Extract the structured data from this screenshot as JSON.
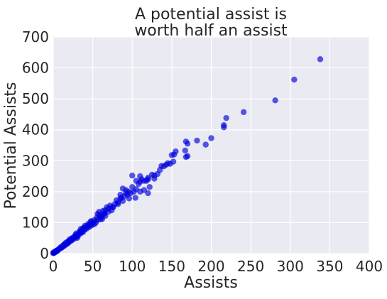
{
  "chart_data": {
    "type": "scatter",
    "title_lines": [
      "A potential assist is",
      "worth half an assist"
    ],
    "xlabel": "Assists",
    "ylabel": "Potential Assists",
    "xlim": [
      0,
      400
    ],
    "ylim": [
      0,
      700
    ],
    "xticks": [
      0,
      50,
      100,
      150,
      200,
      250,
      300,
      350,
      400
    ],
    "yticks": [
      0,
      100,
      200,
      300,
      400,
      500,
      600,
      700
    ],
    "grid": true,
    "background_color": "#eaeaf2",
    "grid_color": "#ffffff",
    "point_color": "#0000dd",
    "point_opacity": 0.65,
    "points": [
      [
        338,
        628
      ],
      [
        305,
        562
      ],
      [
        281,
        495
      ],
      [
        241,
        457
      ],
      [
        219,
        438
      ],
      [
        216,
        415
      ],
      [
        216,
        408
      ],
      [
        200,
        373
      ],
      [
        193,
        352
      ],
      [
        182,
        365
      ],
      [
        168,
        362
      ],
      [
        170,
        355
      ],
      [
        167,
        333
      ],
      [
        170,
        315
      ],
      [
        168,
        312
      ],
      [
        155,
        330
      ],
      [
        153,
        320
      ],
      [
        150,
        318
      ],
      [
        152,
        297
      ],
      [
        148,
        290
      ],
      [
        145,
        292
      ],
      [
        143,
        287
      ],
      [
        140,
        282
      ],
      [
        135,
        270
      ],
      [
        137,
        283
      ],
      [
        132,
        257
      ],
      [
        125,
        255
      ],
      [
        128,
        252
      ],
      [
        128,
        242
      ],
      [
        120,
        240
      ],
      [
        118,
        235
      ],
      [
        115,
        235
      ],
      [
        122,
        215
      ],
      [
        120,
        195
      ],
      [
        110,
        250
      ],
      [
        112,
        240
      ],
      [
        110,
        232
      ],
      [
        100,
        252
      ],
      [
        105,
        235
      ],
      [
        108,
        225
      ],
      [
        100,
        215
      ],
      [
        105,
        208
      ],
      [
        102,
        200
      ],
      [
        98,
        195
      ],
      [
        95,
        200
      ],
      [
        92,
        195
      ],
      [
        90,
        185
      ],
      [
        88,
        170
      ],
      [
        85,
        178
      ],
      [
        80,
        172
      ],
      [
        85,
        190
      ],
      [
        88,
        210
      ],
      [
        92,
        205
      ],
      [
        82,
        165
      ],
      [
        78,
        160
      ],
      [
        75,
        150
      ],
      [
        72,
        155
      ],
      [
        70,
        145
      ],
      [
        68,
        150
      ],
      [
        66,
        140
      ],
      [
        65,
        130
      ],
      [
        63,
        138
      ],
      [
        61,
        120
      ],
      [
        60,
        110
      ],
      [
        58,
        125
      ],
      [
        56,
        128
      ],
      [
        55,
        115
      ],
      [
        54,
        100
      ],
      [
        52,
        108
      ],
      [
        50,
        100
      ],
      [
        50,
        95
      ],
      [
        48,
        90
      ],
      [
        47,
        102
      ],
      [
        45,
        85
      ],
      [
        44,
        95
      ],
      [
        43,
        88
      ],
      [
        42,
        80
      ],
      [
        40,
        78
      ],
      [
        40,
        90
      ],
      [
        38,
        70
      ],
      [
        37,
        75
      ],
      [
        36,
        68
      ],
      [
        35,
        80
      ],
      [
        34,
        64
      ],
      [
        33,
        70
      ],
      [
        32,
        62
      ],
      [
        31,
        55
      ],
      [
        30,
        58
      ],
      [
        29,
        65
      ],
      [
        28,
        52
      ],
      [
        27,
        55
      ],
      [
        26,
        50
      ],
      [
        25,
        45
      ],
      [
        24,
        48
      ],
      [
        23,
        44
      ],
      [
        22,
        40
      ],
      [
        21,
        46
      ],
      [
        20,
        38
      ],
      [
        19,
        35
      ],
      [
        18,
        38
      ],
      [
        17,
        32
      ],
      [
        16,
        30
      ],
      [
        15,
        28
      ],
      [
        14,
        25
      ],
      [
        13,
        27
      ],
      [
        12,
        22
      ],
      [
        11,
        20
      ],
      [
        10,
        18
      ],
      [
        9,
        20
      ],
      [
        8,
        15
      ],
      [
        7,
        14
      ],
      [
        6,
        12
      ],
      [
        5,
        10
      ],
      [
        5,
        8
      ],
      [
        4,
        9
      ],
      [
        3,
        7
      ],
      [
        3,
        5
      ],
      [
        2,
        4
      ],
      [
        2,
        6
      ],
      [
        1,
        3
      ],
      [
        1,
        2
      ],
      [
        0,
        1
      ],
      [
        0,
        3
      ],
      [
        120,
        245
      ],
      [
        58,
        135
      ],
      [
        62,
        112
      ],
      [
        66,
        122
      ],
      [
        70,
        135
      ],
      [
        74,
        140
      ],
      [
        76,
        150
      ],
      [
        82,
        160
      ],
      [
        86,
        180
      ],
      [
        94,
        190
      ],
      [
        96,
        178
      ],
      [
        104,
        180
      ],
      [
        110,
        200
      ],
      [
        115,
        205
      ],
      [
        46,
        92
      ],
      [
        48,
        105
      ],
      [
        52,
        95
      ],
      [
        56,
        108
      ],
      [
        60,
        118
      ],
      [
        64,
        128
      ],
      [
        28,
        60
      ],
      [
        30,
        50
      ],
      [
        34,
        72
      ],
      [
        36,
        74
      ],
      [
        38,
        82
      ],
      [
        40,
        84
      ],
      [
        42,
        86
      ],
      [
        44,
        90
      ],
      [
        12,
        25
      ],
      [
        14,
        30
      ],
      [
        16,
        35
      ],
      [
        18,
        32
      ],
      [
        20,
        42
      ],
      [
        22,
        44
      ],
      [
        24,
        50
      ],
      [
        26,
        52
      ]
    ]
  }
}
